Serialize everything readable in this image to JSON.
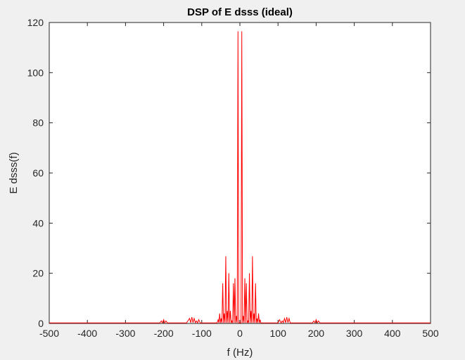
{
  "chart_data": {
    "type": "line",
    "title": "DSP of E dsss (ideal)",
    "xlabel": "f (Hz)",
    "ylabel": "E dsss(f)",
    "xlim": [
      -500,
      500
    ],
    "ylim": [
      0,
      120
    ],
    "xticks": [
      -500,
      -400,
      -300,
      -200,
      -100,
      0,
      100,
      200,
      300,
      400,
      500
    ],
    "yticks": [
      0,
      20,
      40,
      60,
      80,
      100,
      120
    ],
    "grid": false,
    "box": true,
    "series": [
      {
        "color": "#ff0000",
        "x": [
          -500,
          -210,
          -206,
          -203,
          -200,
          -197,
          -194,
          -190,
          -140,
          -132,
          -129,
          -126,
          -123,
          -120,
          -117,
          -114,
          -111,
          -108,
          -104,
          -100,
          -70,
          -60,
          -57,
          -55,
          -53,
          -51,
          -49,
          -47,
          -45,
          -43,
          -41,
          -39,
          -37,
          -35,
          -33,
          -31,
          -29,
          -27,
          -25,
          -23,
          -21,
          -19,
          -17,
          -15,
          -13,
          -11,
          -9,
          -7,
          -5,
          -3,
          -2,
          -1,
          0,
          1,
          2,
          3,
          5,
          7,
          9,
          11,
          13,
          15,
          17,
          19,
          21,
          23,
          25,
          27,
          29,
          31,
          33,
          35,
          37,
          39,
          41,
          43,
          45,
          47,
          49,
          51,
          53,
          55,
          57,
          60,
          70,
          100,
          104,
          108,
          111,
          114,
          117,
          120,
          123,
          126,
          129,
          132,
          140,
          190,
          194,
          197,
          200,
          203,
          206,
          210,
          500
        ],
        "y": [
          0.2,
          0.2,
          1.0,
          0.2,
          1.5,
          0.2,
          1.0,
          0.2,
          0.2,
          2.0,
          0.3,
          2.5,
          0.3,
          2.0,
          0.3,
          1.0,
          0.2,
          1.5,
          0.2,
          0.2,
          0.2,
          0.2,
          1.5,
          0.2,
          4.0,
          0.2,
          2.0,
          0.2,
          16.0,
          0.2,
          4.0,
          0.2,
          26.8,
          0.2,
          5.0,
          0.2,
          20.0,
          0.2,
          5.0,
          0.2,
          1.0,
          0.2,
          16.0,
          0.2,
          18.0,
          0.2,
          3.0,
          0.2,
          116.5,
          0.2,
          0.2,
          0.2,
          0.2,
          0.2,
          0.2,
          0.2,
          116.5,
          0.2,
          3.0,
          0.2,
          18.0,
          0.2,
          16.0,
          0.2,
          1.0,
          0.2,
          20.0,
          0.2,
          5.0,
          0.2,
          26.8,
          0.2,
          4.0,
          0.2,
          16.0,
          0.2,
          2.0,
          0.2,
          4.0,
          0.2,
          1.5,
          0.2,
          0.2,
          0.2,
          0.2,
          0.2,
          1.5,
          0.2,
          1.0,
          0.3,
          2.0,
          0.3,
          2.5,
          0.3,
          2.0,
          0.2,
          0.2,
          0.2,
          1.0,
          0.2,
          1.5,
          0.2,
          1.0,
          0.2,
          0.2
        ]
      }
    ]
  }
}
